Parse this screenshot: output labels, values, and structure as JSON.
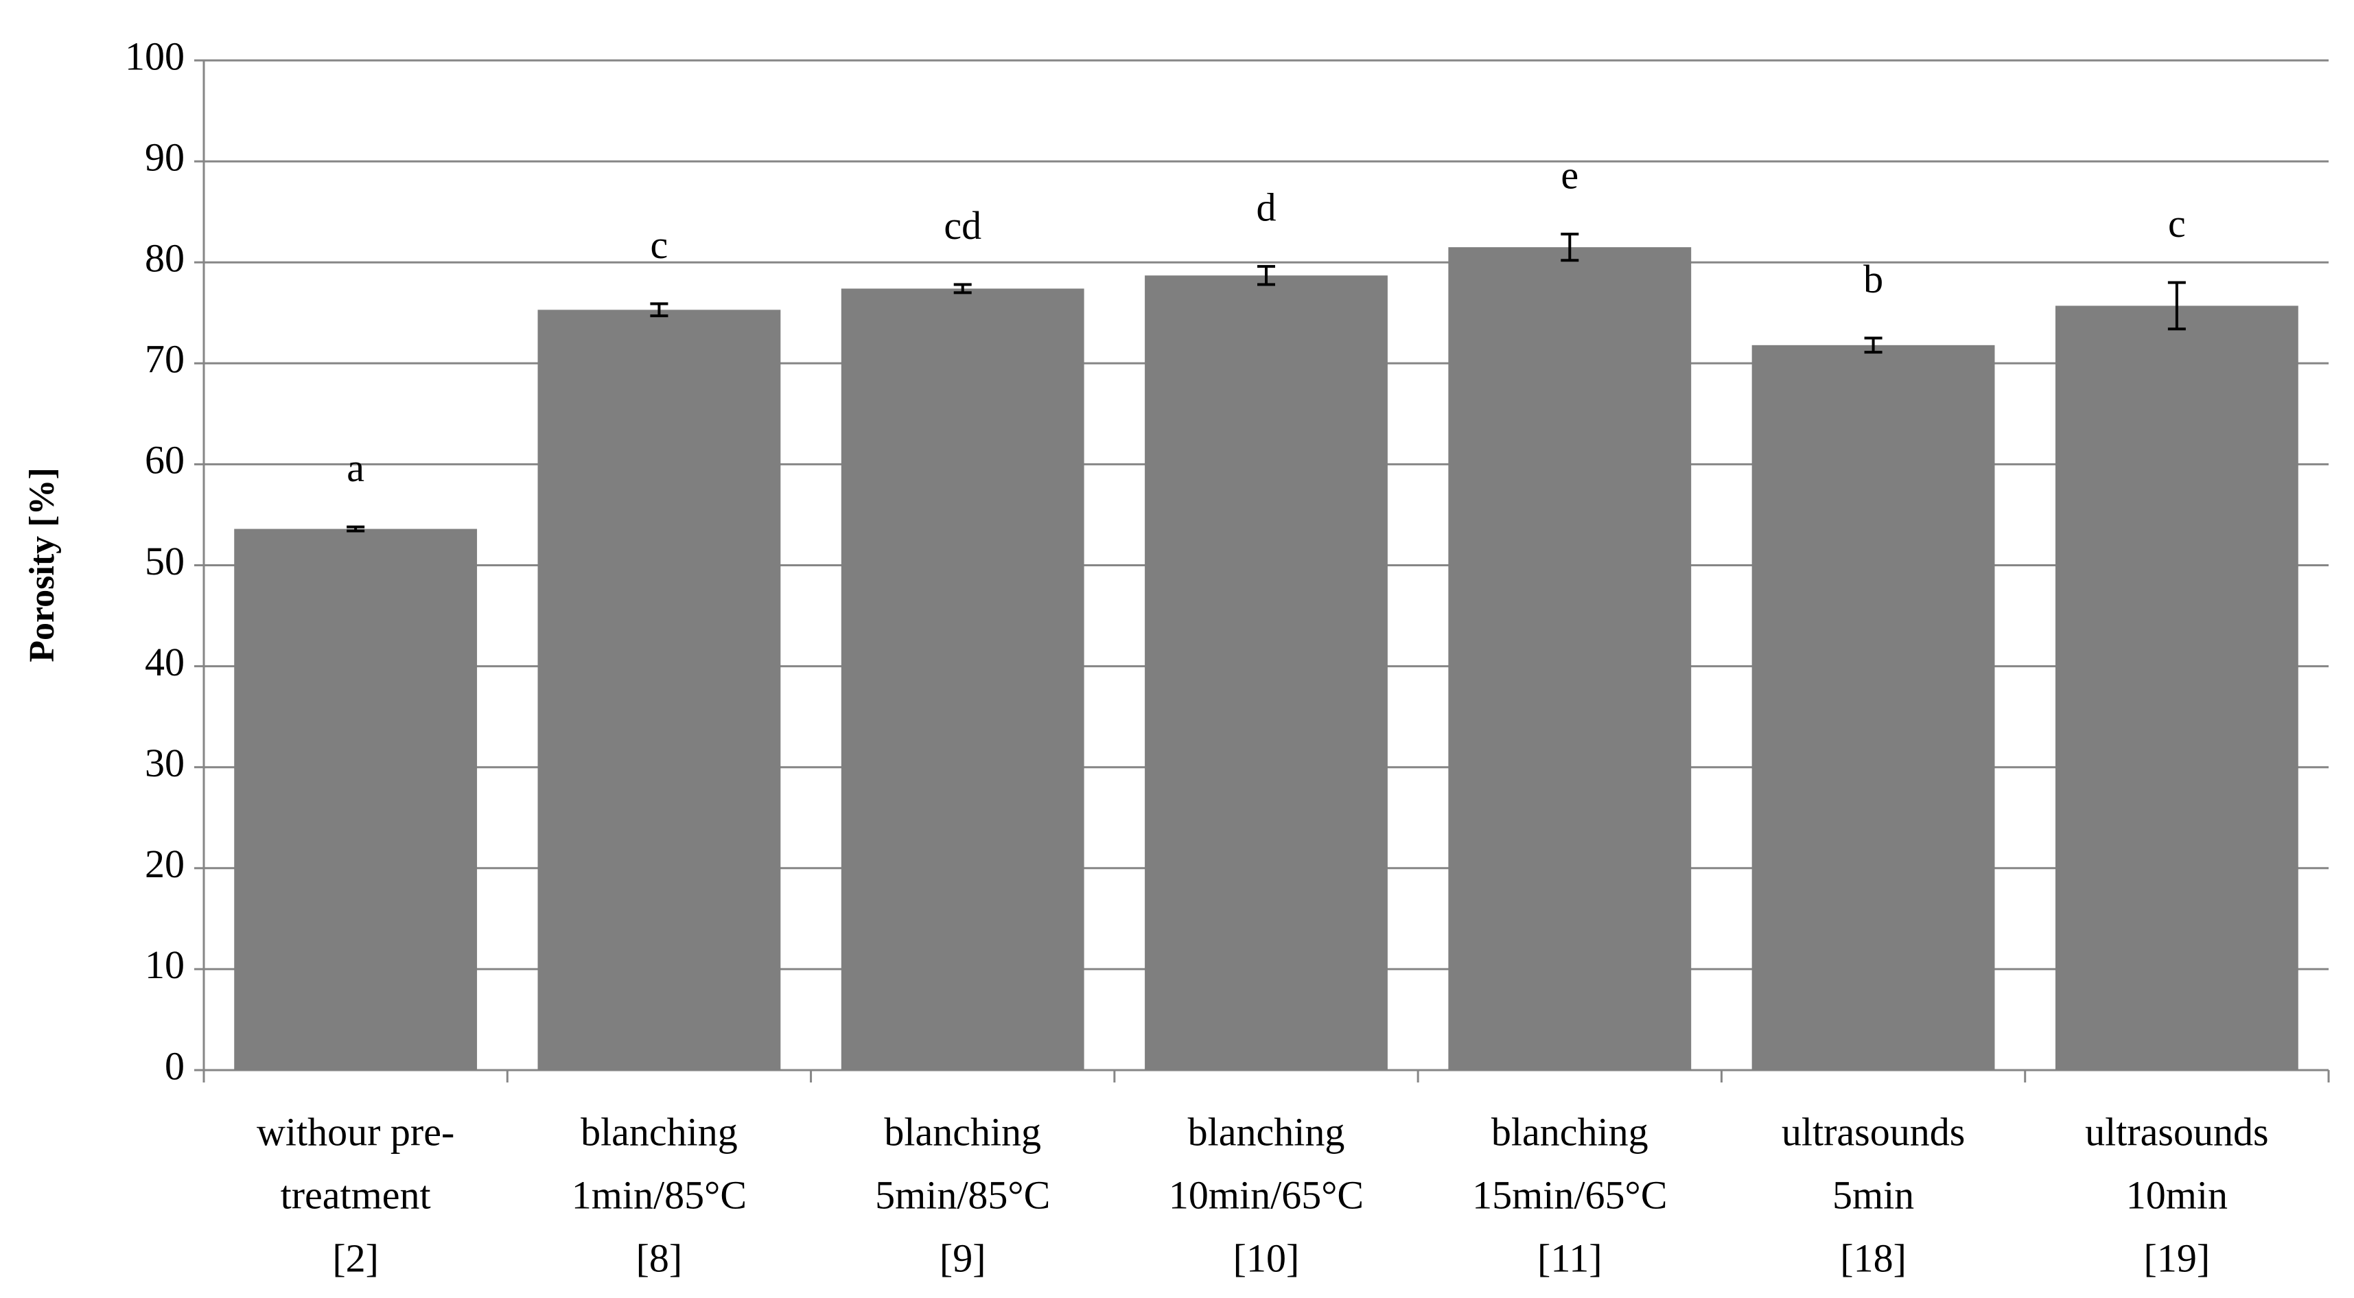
{
  "chart_data": {
    "type": "bar",
    "y_label": "Porosity [%]",
    "categories": [
      [
        "withour pre-",
        "treatment",
        "[2]"
      ],
      [
        "blanching",
        "1min/85°C",
        "[8]"
      ],
      [
        "blanching",
        "5min/85°C",
        "[9]"
      ],
      [
        "blanching",
        "10min/65°C",
        "[10]"
      ],
      [
        "blanching",
        "15min/65°C",
        "[11]"
      ],
      [
        "ultrasounds",
        "5min",
        "[18]"
      ],
      [
        "ultrasounds",
        "10min",
        "[19]"
      ]
    ],
    "values": [
      53.6,
      75.3,
      77.4,
      78.7,
      81.5,
      71.8,
      75.7
    ],
    "errors": [
      0.2,
      0.6,
      0.4,
      0.9,
      1.3,
      0.7,
      2.3
    ],
    "letters": [
      "a",
      "c",
      "cd",
      "d",
      "e",
      "b",
      "c"
    ],
    "color": "#7f7f7f",
    "ylim": [
      0,
      100
    ],
    "yticks": [
      0,
      10,
      20,
      30,
      40,
      50,
      60,
      70,
      80,
      90,
      100
    ],
    "grid": true
  }
}
